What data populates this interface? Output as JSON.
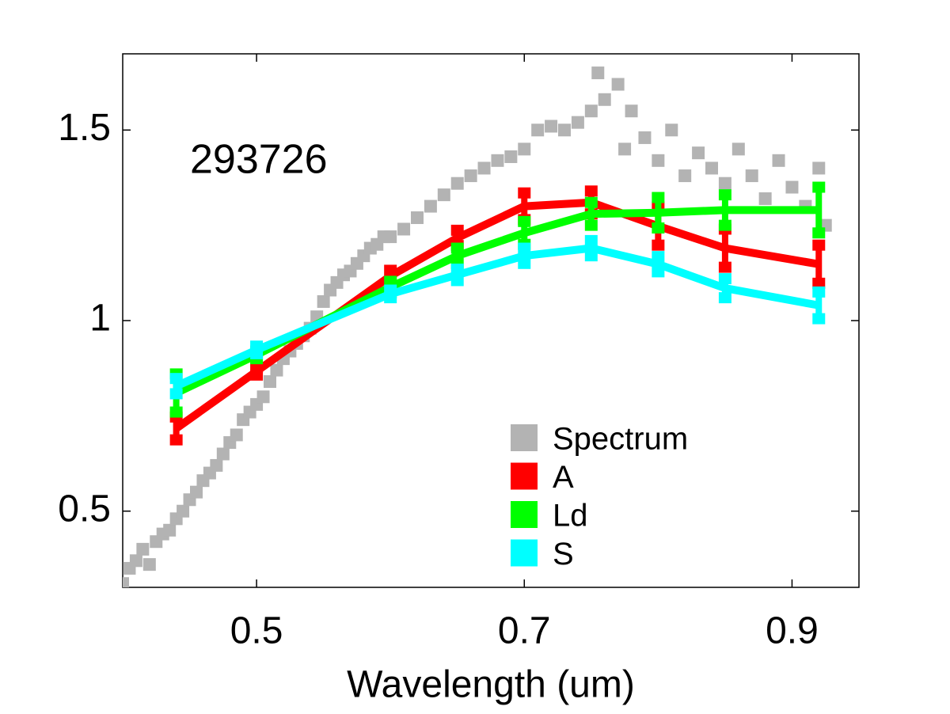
{
  "chart_data": {
    "type": "line",
    "annotation": "293726",
    "xlabel": "Wavelength (um)",
    "xlim": [
      0.4,
      0.95
    ],
    "ylim": [
      0.3,
      1.7
    ],
    "xticks": [
      0.5,
      0.7,
      0.9
    ],
    "yticks": [
      0.5,
      1,
      1.5
    ],
    "legend": "lower right",
    "series": [
      {
        "name": "Spectrum",
        "color": "#b3b3b3",
        "style": "markers",
        "x": [
          0.4,
          0.405,
          0.41,
          0.415,
          0.42,
          0.425,
          0.43,
          0.435,
          0.44,
          0.445,
          0.45,
          0.455,
          0.46,
          0.465,
          0.47,
          0.475,
          0.48,
          0.485,
          0.49,
          0.495,
          0.5,
          0.505,
          0.51,
          0.515,
          0.52,
          0.525,
          0.53,
          0.535,
          0.54,
          0.545,
          0.55,
          0.555,
          0.56,
          0.565,
          0.57,
          0.575,
          0.58,
          0.585,
          0.59,
          0.595,
          0.6,
          0.61,
          0.62,
          0.63,
          0.64,
          0.65,
          0.66,
          0.67,
          0.68,
          0.69,
          0.7,
          0.71,
          0.72,
          0.73,
          0.74,
          0.75,
          0.755,
          0.76,
          0.77,
          0.775,
          0.78,
          0.79,
          0.8,
          0.81,
          0.82,
          0.83,
          0.84,
          0.85,
          0.86,
          0.87,
          0.88,
          0.89,
          0.9,
          0.91,
          0.92,
          0.925
        ],
        "values": [
          0.31,
          0.35,
          0.37,
          0.4,
          0.36,
          0.42,
          0.44,
          0.45,
          0.48,
          0.5,
          0.53,
          0.55,
          0.58,
          0.6,
          0.62,
          0.65,
          0.68,
          0.7,
          0.74,
          0.76,
          0.78,
          0.8,
          0.84,
          0.87,
          0.9,
          0.92,
          0.94,
          0.96,
          0.98,
          1.01,
          1.05,
          1.08,
          1.1,
          1.12,
          1.13,
          1.15,
          1.17,
          1.19,
          1.2,
          1.22,
          1.22,
          1.24,
          1.27,
          1.3,
          1.33,
          1.36,
          1.38,
          1.4,
          1.42,
          1.43,
          1.45,
          1.5,
          1.51,
          1.5,
          1.52,
          1.55,
          1.65,
          1.58,
          1.62,
          1.45,
          1.55,
          1.48,
          1.42,
          1.5,
          1.38,
          1.44,
          1.4,
          1.36,
          1.45,
          1.38,
          1.32,
          1.42,
          1.35,
          1.3,
          1.4,
          1.25
        ]
      },
      {
        "name": "A",
        "color": "#ff0000",
        "style": "line",
        "x": [
          0.44,
          0.5,
          0.6,
          0.65,
          0.7,
          0.75,
          0.8,
          0.85,
          0.92
        ],
        "values": [
          0.717,
          0.867,
          1.117,
          1.217,
          1.3,
          1.31,
          1.248,
          1.19,
          1.148
        ],
        "errors": [
          0.03,
          0.01,
          0.015,
          0.02,
          0.035,
          0.03,
          0.05,
          0.05,
          0.05
        ]
      },
      {
        "name": "Ld",
        "color": "#00ff00",
        "style": "line",
        "x": [
          0.44,
          0.5,
          0.6,
          0.65,
          0.7,
          0.75,
          0.8,
          0.85,
          0.92
        ],
        "values": [
          0.81,
          0.91,
          1.088,
          1.17,
          1.23,
          1.28,
          1.283,
          1.29,
          1.29
        ],
        "errors": [
          0.05,
          0.01,
          0.015,
          0.02,
          0.03,
          0.03,
          0.04,
          0.04,
          0.06
        ]
      },
      {
        "name": "S",
        "color": "#00ffff",
        "style": "line",
        "x": [
          0.44,
          0.5,
          0.6,
          0.65,
          0.7,
          0.75,
          0.8,
          0.85,
          0.92
        ],
        "values": [
          0.828,
          0.923,
          1.07,
          1.12,
          1.17,
          1.19,
          1.148,
          1.085,
          1.04
        ],
        "errors": [
          0.02,
          0.01,
          0.01,
          0.015,
          0.02,
          0.02,
          0.02,
          0.025,
          0.035
        ]
      }
    ]
  }
}
